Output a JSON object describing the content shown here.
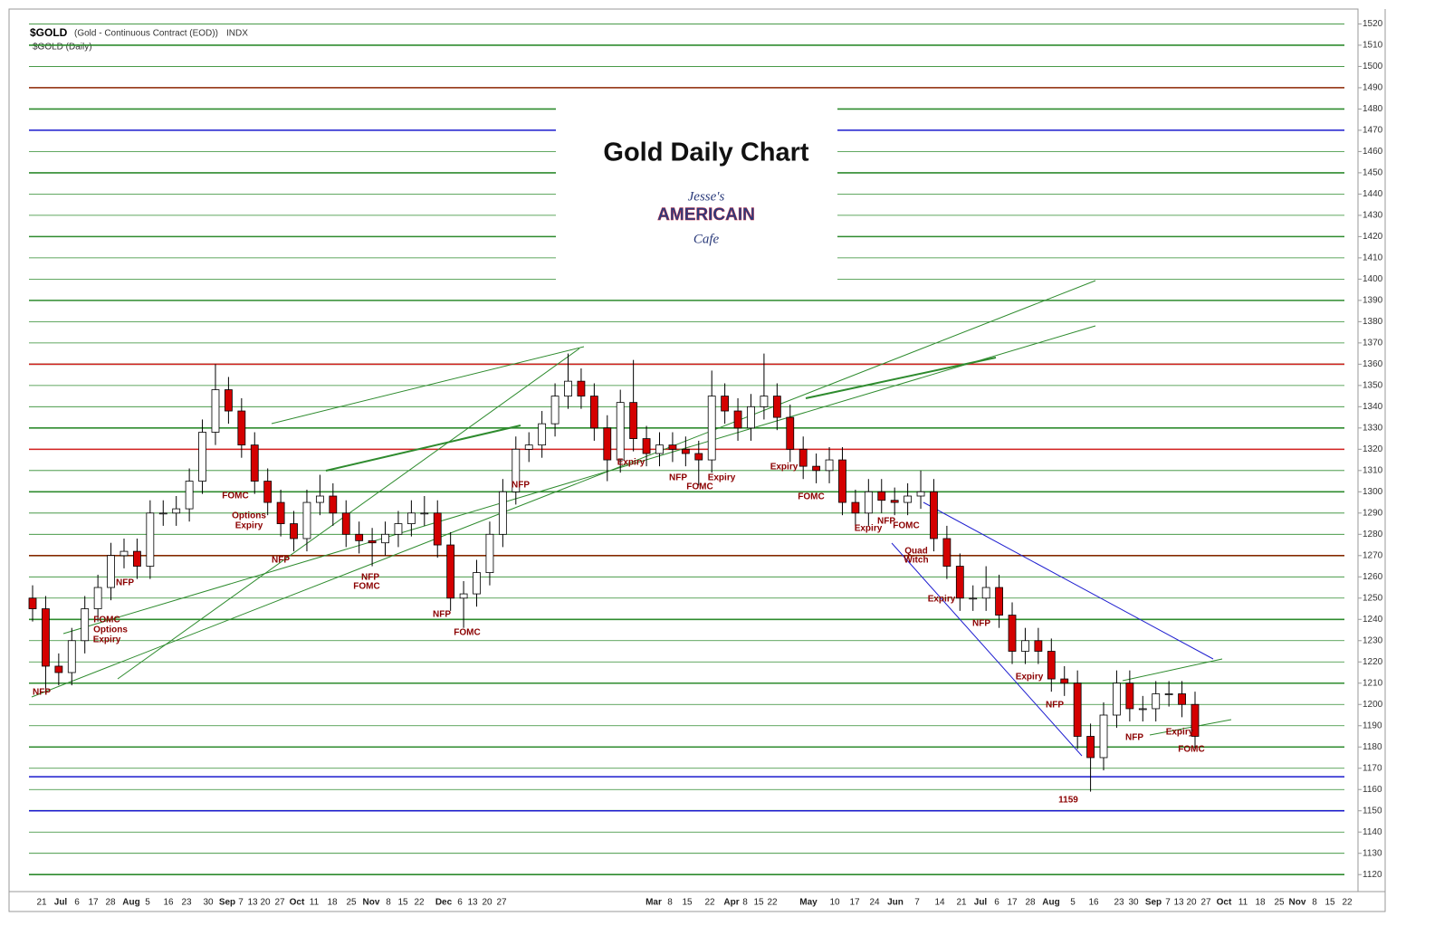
{
  "chart_data": {
    "type": "candlestick",
    "symbol": "$GOLD",
    "description": "(Gold - Continuous Contract (EOD))",
    "exchange": "INDX",
    "subtitle": "$GOLD (Daily)",
    "title": "Gold Daily Chart",
    "logo": [
      "Jesse's",
      "AMERICAIN",
      "Cafe"
    ],
    "open": [
      1250,
      1245,
      1218,
      1215,
      1230,
      1245,
      1255,
      1270,
      1272,
      1265,
      1290,
      1290,
      1292,
      1305,
      1328,
      1348,
      1338,
      1322,
      1305,
      1295,
      1285,
      1278,
      1295,
      1298,
      1290,
      1280,
      1277,
      1276,
      1280,
      1285,
      1290,
      1290,
      1275,
      1250,
      1252,
      1262,
      1280,
      1300,
      1320,
      1322,
      1332,
      1345,
      1352,
      1345,
      1330,
      1315,
      1342,
      1325,
      1318,
      1322,
      1320,
      1318,
      1315,
      1345,
      1338,
      1330,
      1340,
      1345,
      1335,
      1320,
      1312,
      1310,
      1315,
      1295,
      1290,
      1300,
      1296,
      1295,
      1298,
      1300,
      1278,
      1265,
      1250,
      1250,
      1255,
      1242,
      1225,
      1230,
      1225,
      1212,
      1210,
      1185,
      1175,
      1195,
      1210,
      1198,
      1198,
      1205,
      1205,
      1200
    ],
    "high": [
      1256,
      1251,
      1224,
      1236,
      1251,
      1261,
      1276,
      1278,
      1278,
      1296,
      1296,
      1298,
      1311,
      1334,
      1360,
      1354,
      1344,
      1328,
      1311,
      1301,
      1291,
      1301,
      1308,
      1304,
      1296,
      1286,
      1283,
      1286,
      1291,
      1296,
      1298,
      1296,
      1281,
      1258,
      1268,
      1286,
      1306,
      1326,
      1328,
      1338,
      1351,
      1365,
      1358,
      1351,
      1336,
      1348,
      1362,
      1331,
      1328,
      1328,
      1326,
      1324,
      1357,
      1351,
      1344,
      1346,
      1365,
      1351,
      1341,
      1326,
      1318,
      1321,
      1321,
      1301,
      1306,
      1306,
      1302,
      1304,
      1310,
      1306,
      1284,
      1271,
      1256,
      1265,
      1261,
      1248,
      1236,
      1236,
      1231,
      1218,
      1216,
      1191,
      1201,
      1216,
      1216,
      1204,
      1211,
      1211,
      1211,
      1206
    ],
    "low": [
      1239,
      1205,
      1209,
      1209,
      1224,
      1239,
      1249,
      1264,
      1259,
      1259,
      1284,
      1284,
      1286,
      1299,
      1322,
      1332,
      1316,
      1299,
      1289,
      1279,
      1272,
      1272,
      1289,
      1284,
      1274,
      1271,
      1265,
      1270,
      1274,
      1279,
      1284,
      1269,
      1244,
      1236,
      1246,
      1256,
      1274,
      1294,
      1314,
      1316,
      1326,
      1339,
      1339,
      1324,
      1305,
      1309,
      1319,
      1312,
      1312,
      1314,
      1312,
      1303,
      1309,
      1332,
      1324,
      1324,
      1334,
      1329,
      1314,
      1306,
      1304,
      1304,
      1289,
      1284,
      1284,
      1290,
      1289,
      1289,
      1292,
      1272,
      1259,
      1244,
      1244,
      1244,
      1236,
      1219,
      1219,
      1219,
      1206,
      1204,
      1179,
      1159,
      1169,
      1189,
      1192,
      1192,
      1192,
      1199,
      1194,
      1179
    ],
    "close": [
      1245,
      1218,
      1215,
      1230,
      1245,
      1255,
      1270,
      1272,
      1265,
      1290,
      1290,
      1292,
      1305,
      1328,
      1348,
      1338,
      1322,
      1305,
      1295,
      1285,
      1278,
      1295,
      1298,
      1290,
      1280,
      1277,
      1276,
      1280,
      1285,
      1290,
      1290,
      1275,
      1250,
      1252,
      1262,
      1280,
      1300,
      1320,
      1322,
      1332,
      1345,
      1352,
      1345,
      1330,
      1315,
      1342,
      1325,
      1318,
      1322,
      1320,
      1318,
      1315,
      1345,
      1338,
      1330,
      1340,
      1345,
      1335,
      1320,
      1312,
      1310,
      1315,
      1295,
      1290,
      1300,
      1296,
      1295,
      1298,
      1300,
      1278,
      1265,
      1250,
      1250,
      1255,
      1242,
      1225,
      1230,
      1225,
      1212,
      1210,
      1185,
      1175,
      1195,
      1210,
      1198,
      1198,
      1205,
      1205,
      1200,
      1185
    ],
    "up_color": "#ffffff",
    "down_color": "#d40000",
    "grid": true,
    "grid_color": "#2e8b2e",
    "ylim": [
      1112,
      1527
    ],
    "yticks": [
      1120,
      1130,
      1140,
      1150,
      1160,
      1170,
      1180,
      1190,
      1200,
      1210,
      1220,
      1230,
      1240,
      1250,
      1260,
      1270,
      1280,
      1290,
      1300,
      1310,
      1320,
      1330,
      1340,
      1350,
      1360,
      1370,
      1380,
      1390,
      1400,
      1410,
      1420,
      1430,
      1440,
      1450,
      1460,
      1470,
      1480,
      1490,
      1500,
      1510,
      1520
    ],
    "reference_lines": [
      {
        "value": 1490,
        "color": "#8b2500"
      },
      {
        "value": 1470,
        "color": "#1a1acd"
      },
      {
        "value": 1360,
        "color": "#d42020"
      },
      {
        "value": 1320,
        "color": "#d42020"
      },
      {
        "value": 1270,
        "color": "#8b2500"
      },
      {
        "value": 1166,
        "color": "#1a1acd"
      },
      {
        "value": 1150,
        "color": "#1a1acd"
      }
    ],
    "x_labels": [
      "21",
      "Jul",
      "6",
      "17",
      "28",
      "Aug",
      "5",
      "16",
      "23",
      "30",
      "Sep",
      "7",
      "13",
      "20",
      "27",
      "Oct",
      "11",
      "18",
      "25",
      "Nov",
      "8",
      "15",
      "22",
      "Dec",
      "6",
      "13",
      "20",
      "27",
      "Mar",
      "8",
      "15",
      "22",
      "Apr",
      "8",
      "15",
      "22",
      "May",
      "10",
      "17",
      "24",
      "Jun",
      "7",
      "14",
      "21",
      "Jul",
      "6",
      "17",
      "28",
      "Aug",
      "5",
      "16",
      "23",
      "30",
      "Sep",
      "7",
      "13",
      "20",
      "27",
      "Oct",
      "11",
      "18",
      "25",
      "Nov",
      "8",
      "15",
      "22"
    ],
    "annotations": [
      "NFP",
      "FOMC",
      "Options",
      "Expiry",
      "NFP",
      "FOMC",
      "Options",
      "Expiry",
      "NFP",
      "NFP",
      "FOMC",
      "NFP",
      "FOMC",
      "NFP",
      "Expiry",
      "NFP",
      "FOMC",
      "Expiry",
      "Expiry",
      "FOMC",
      "Expiry",
      "NFP",
      "FOMC",
      "Quad",
      "Witch",
      "Expiry",
      "NFP",
      "Expiry",
      "NFP",
      "1159",
      "NFP",
      "Expiry",
      "FOMC"
    ]
  }
}
